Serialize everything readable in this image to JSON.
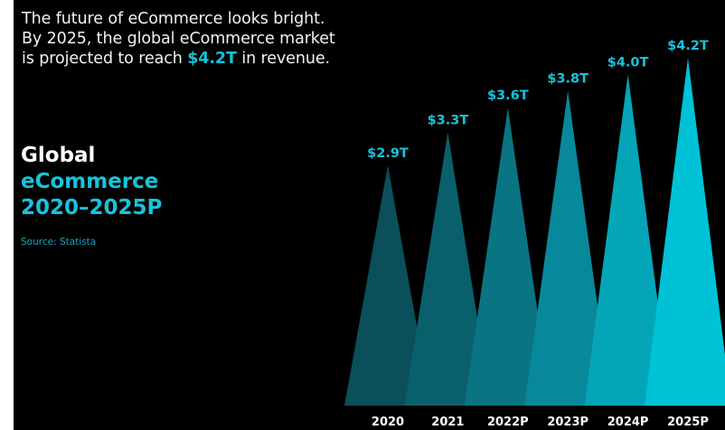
{
  "intro": {
    "line1": "The future of eCommerce looks bright.",
    "line2": "By 2025, the global eCommerce market",
    "line3_prefix": "is projected to reach ",
    "line3_highlight": "$4.2T",
    "line3_suffix": " in revenue."
  },
  "heading": {
    "line1": "Global",
    "line2": "eCommerce",
    "line3": "2020–2025P"
  },
  "source": "Source: Statista",
  "colors": {
    "background": "#000000",
    "accent": "#19c2da",
    "series": [
      "#0a4f5a",
      "#0a5f6d",
      "#0a7483",
      "#08899b",
      "#05a5b8",
      "#00c2d6"
    ]
  },
  "chart_data": {
    "type": "bar",
    "categories": [
      "2020",
      "2021",
      "2022P",
      "2023P",
      "2024P",
      "2025P"
    ],
    "values": [
      2.9,
      3.3,
      3.6,
      3.8,
      4.0,
      4.2
    ],
    "value_labels": [
      "$2.9T",
      "$3.3T",
      "$3.6T",
      "$3.8T",
      "$4.0T",
      "$4.2T"
    ],
    "ylim": [
      0,
      4.2
    ],
    "grid": false,
    "legend": "none"
  }
}
